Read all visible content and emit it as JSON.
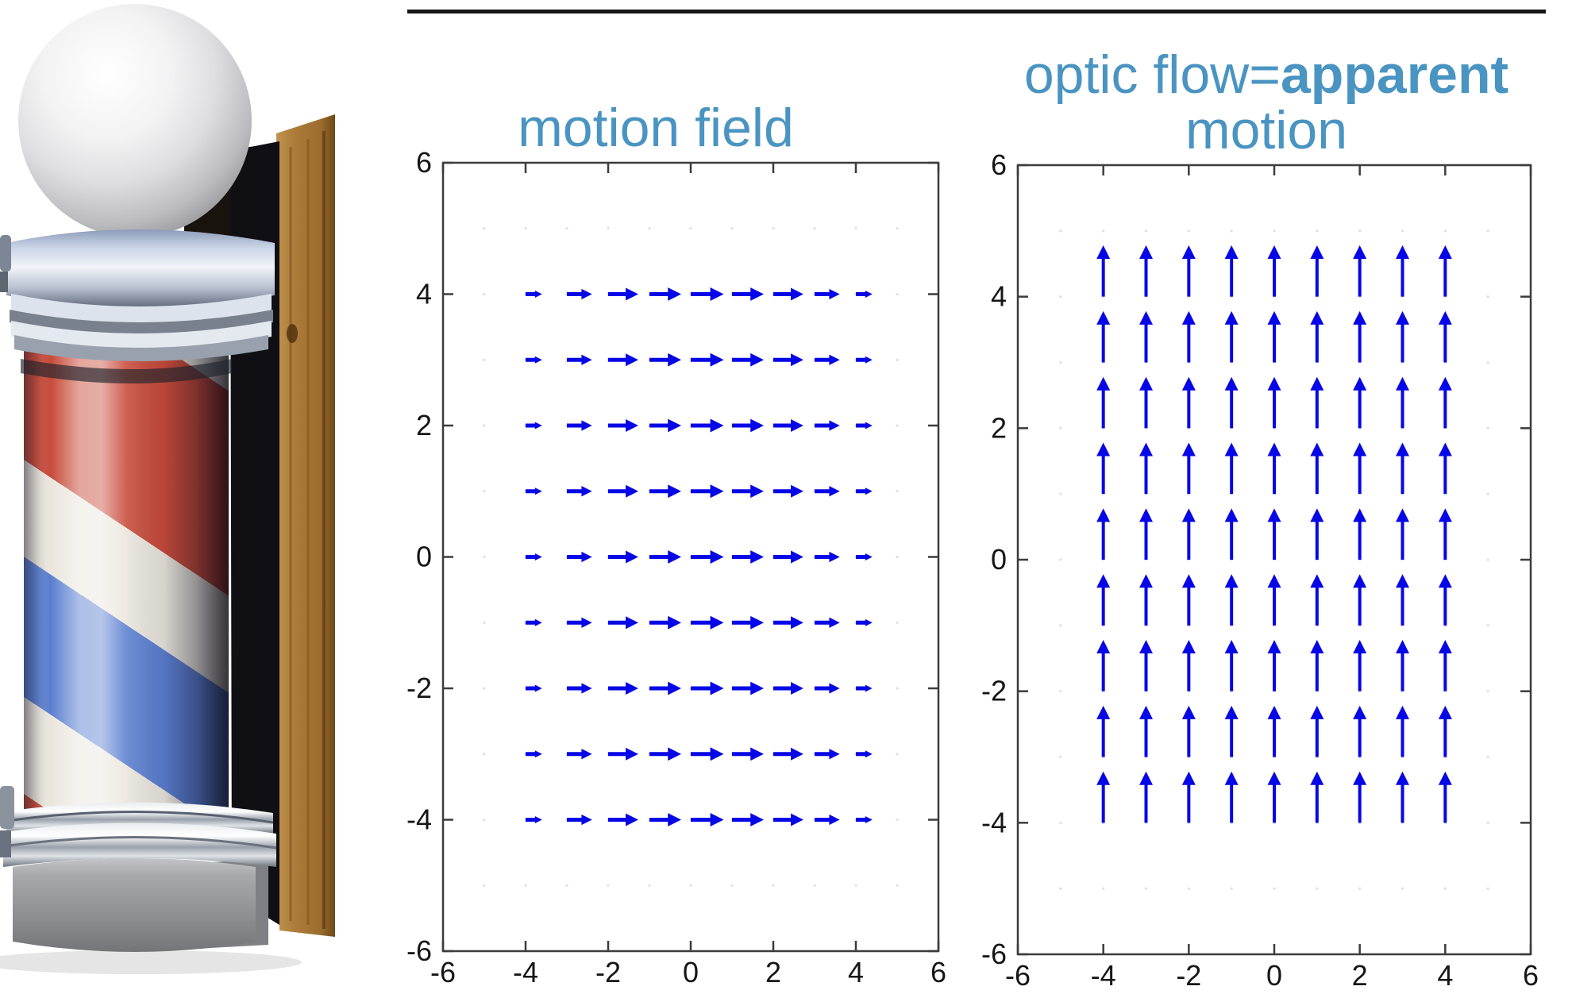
{
  "slide": {
    "top_rule": {
      "color": "#161616"
    },
    "titles": {
      "left": "motion field",
      "right_line1_regular": "optic flow=",
      "right_line1_bold": "apparent",
      "right_line2": "motion",
      "color": "#4a94c2"
    },
    "barber_pole": {
      "description": "barber pole photo with chrome ball, red-white-blue spiral cylinder, chrome base and wooden backing board",
      "colors": {
        "stripe_red": "#c84b3a",
        "stripe_blue": "#5b7fd0",
        "stripe_white": "#eae6dd",
        "wood": "#a87a3c",
        "chrome": "#c6d2e4",
        "drum_gray": "#8f9092"
      }
    }
  },
  "chart_data": [
    {
      "type": "quiver",
      "title": "motion field",
      "xlabel": "",
      "ylabel": "",
      "xlim": [
        -6,
        6
      ],
      "ylim": [
        -6,
        6
      ],
      "xticks": [
        -6,
        -4,
        -2,
        0,
        2,
        4,
        6
      ],
      "yticks": [
        6,
        4,
        2,
        0,
        -2,
        -4,
        -6
      ],
      "grid_x": [
        -4,
        -3,
        -2,
        -1,
        0,
        1,
        2,
        3,
        4
      ],
      "grid_y": [
        4,
        3,
        2,
        1,
        0,
        -1,
        -2,
        -3,
        -4
      ],
      "direction": "right",
      "u_by_x": [
        0.4,
        0.61,
        0.73,
        0.77,
        0.8,
        0.77,
        0.73,
        0.61,
        0.4
      ],
      "v": 0,
      "arrow_color": "#0606e6",
      "axis_color": "#3c3c3c",
      "tick_label_color": "#161616",
      "grid_dots": {
        "positions": [
          -5,
          -4,
          -3,
          -2,
          -1,
          0,
          1,
          2,
          3,
          4,
          5
        ],
        "color": "#d9dce1"
      },
      "legend": "none",
      "grid": "off"
    },
    {
      "type": "quiver",
      "title": "optic flow=apparent motion",
      "xlabel": "",
      "ylabel": "",
      "xlim": [
        -6,
        6
      ],
      "ylim": [
        -6,
        6
      ],
      "xticks": [
        -6,
        -4,
        -2,
        0,
        2,
        4,
        6
      ],
      "yticks": [
        6,
        4,
        2,
        0,
        -2,
        -4,
        -6
      ],
      "grid_x": [
        -4,
        -3,
        -2,
        -1,
        0,
        1,
        2,
        3,
        4
      ],
      "grid_y": [
        4,
        3,
        2,
        1,
        0,
        -1,
        -2,
        -3,
        -4
      ],
      "direction": "up",
      "u": 0,
      "v": 0.78,
      "arrow_color": "#0606e6",
      "axis_color": "#3c3c3c",
      "tick_label_color": "#161616",
      "grid_dots": {
        "positions": [
          -5,
          -4,
          -3,
          -2,
          -1,
          0,
          1,
          2,
          3,
          4,
          5
        ],
        "color": "#d9dce1"
      },
      "legend": "none",
      "grid": "off"
    }
  ]
}
